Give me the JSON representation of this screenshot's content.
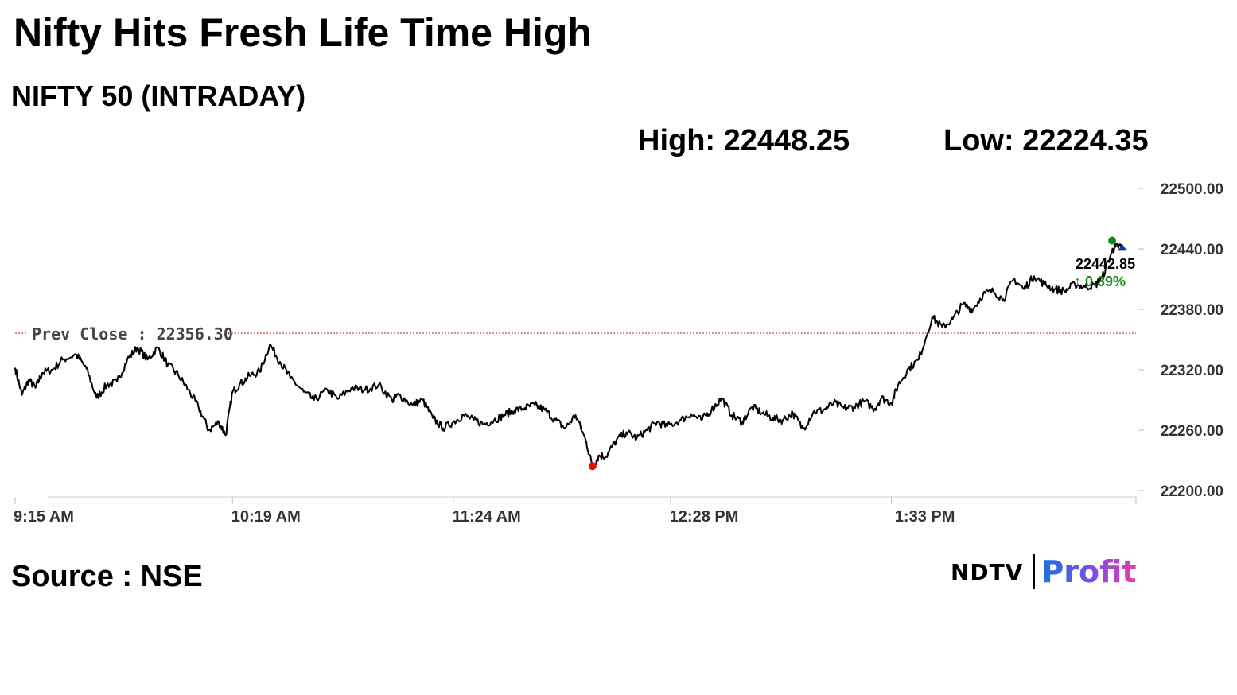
{
  "header": {
    "title": "Nifty Hits Fresh Life Time High",
    "subtitle": "NIFTY 50 (INTRADAY)"
  },
  "stats": {
    "high": "High: 22448.25",
    "low": "Low: 22224.35"
  },
  "footer": {
    "source": "Source : NSE",
    "logo_left": "NDTV",
    "logo_right": "Profit"
  },
  "colors": {
    "line": "#000000",
    "prev_close_line": "#d01010",
    "low_marker": "#e01010",
    "high_marker": "#128a12",
    "up_change": "#118a11",
    "grid_axis": "#cccccc"
  },
  "chart_data": {
    "type": "line",
    "title": "NIFTY 50 (INTRADAY)",
    "xlabel": "",
    "ylabel": "",
    "ylim": [
      22200,
      22500
    ],
    "xlim": [
      "9:15 AM",
      "2:45 PM"
    ],
    "yticks": [
      "22500.00",
      "22440.00",
      "22380.00",
      "22320.00",
      "22260.00",
      "22200.00"
    ],
    "ytick_values": [
      22500,
      22440,
      22380,
      22320,
      22260,
      22200
    ],
    "xticks": [
      "9:15 AM",
      "10:19 AM",
      "11:24 AM",
      "12:28 PM",
      "1:33 PM"
    ],
    "xtick_minutes": [
      0,
      64,
      129,
      193,
      258
    ],
    "grid": false,
    "prev_close": {
      "label": "Prev Close : 22356.30",
      "value": 22356.3
    },
    "last": {
      "label": "22442.85",
      "change": "↑ 0.39%",
      "minute": 326,
      "value": 22442.85
    },
    "low_point": {
      "minute": 170,
      "value": 22224.35
    },
    "high_point": {
      "minute": 323,
      "value": 22448.25
    },
    "series": [
      {
        "x_minutes": [
          0,
          2,
          4,
          6,
          8,
          11,
          14,
          18,
          21,
          24,
          27,
          30,
          33,
          36,
          39,
          42,
          45,
          48,
          51,
          54,
          57,
          60,
          62,
          64,
          66,
          69,
          72,
          75,
          78,
          81,
          85,
          88,
          92,
          95,
          99,
          103,
          107,
          111,
          113,
          117,
          120,
          123,
          126,
          129,
          132,
          135,
          138,
          141,
          144,
          147,
          150,
          153,
          156,
          159,
          162,
          165,
          168,
          170,
          172,
          174,
          177,
          180,
          183,
          186,
          189,
          192,
          196,
          199,
          202,
          205,
          208,
          211,
          214,
          217,
          220,
          223,
          226,
          229,
          232,
          235,
          238,
          241,
          244,
          247,
          250,
          253,
          255,
          258,
          260,
          263,
          266,
          270,
          273,
          276,
          279,
          282,
          285,
          288,
          291,
          294,
          297,
          300,
          303,
          306,
          309,
          312,
          315,
          318,
          320,
          323,
          324,
          326
        ],
        "values": [
          22322,
          22295,
          22310,
          22302,
          22317,
          22320,
          22330,
          22335,
          22321,
          22292,
          22305,
          22308,
          22330,
          22342,
          22330,
          22342,
          22325,
          22315,
          22300,
          22283,
          22260,
          22268,
          22255,
          22298,
          22305,
          22314,
          22318,
          22345,
          22328,
          22312,
          22298,
          22290,
          22300,
          22291,
          22302,
          22300,
          22305,
          22290,
          22295,
          22285,
          22290,
          22272,
          22262,
          22268,
          22275,
          22270,
          22266,
          22270,
          22275,
          22280,
          22282,
          22285,
          22280,
          22270,
          22262,
          22275,
          22250,
          22224,
          22235,
          22234,
          22250,
          22258,
          22252,
          22260,
          22268,
          22264,
          22270,
          22276,
          22270,
          22280,
          22292,
          22275,
          22268,
          22283,
          22277,
          22272,
          22270,
          22277,
          22261,
          22278,
          22280,
          22287,
          22282,
          22283,
          22289,
          22281,
          22292,
          22287,
          22305,
          22321,
          22330,
          22372,
          22362,
          22370,
          22385,
          22380,
          22395,
          22398,
          22390,
          22410,
          22400,
          22413,
          22405,
          22400,
          22398,
          22405,
          22402,
          22404,
          22411,
          22438,
          22442,
          22442.85
        ]
      }
    ]
  }
}
